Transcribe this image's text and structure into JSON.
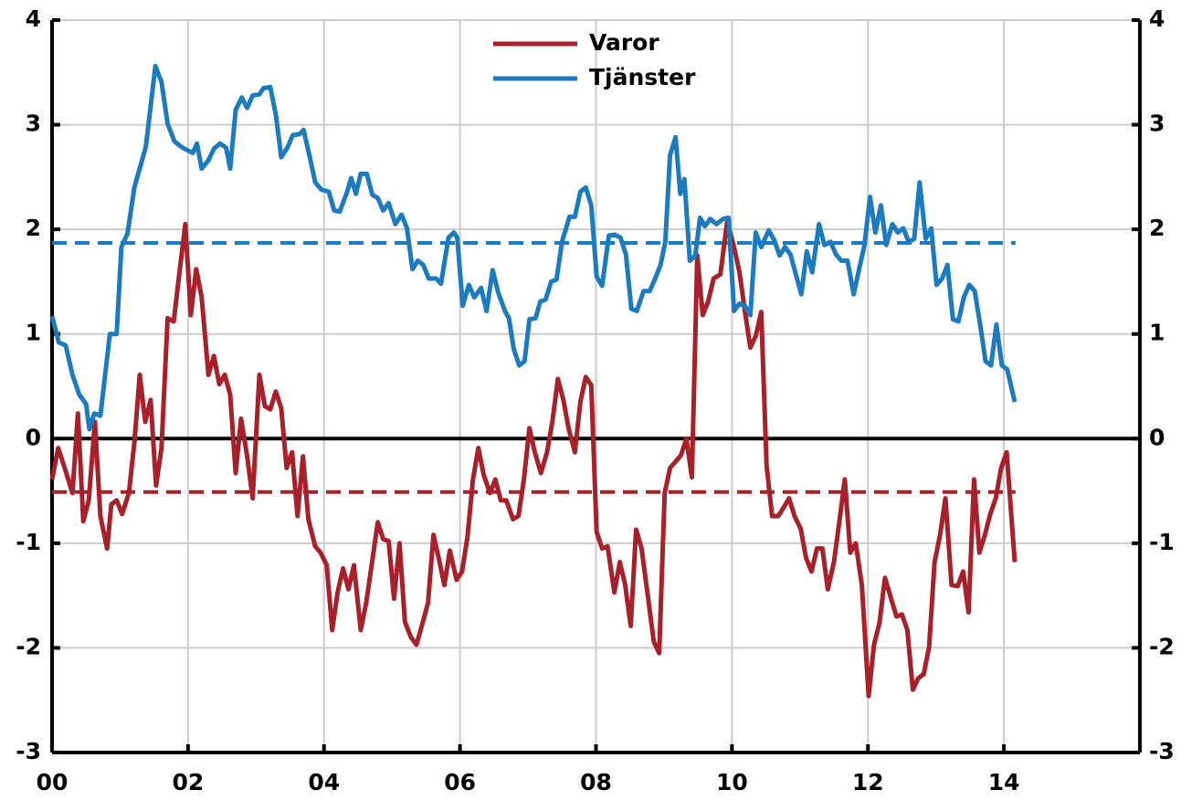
{
  "chart_data": {
    "type": "line",
    "xlim": [
      0,
      16
    ],
    "xticks": [
      {
        "value": 0,
        "label": "00"
      },
      {
        "value": 2,
        "label": "02"
      },
      {
        "value": 4,
        "label": "04"
      },
      {
        "value": 6,
        "label": "06"
      },
      {
        "value": 8,
        "label": "08"
      },
      {
        "value": 10,
        "label": "10"
      },
      {
        "value": 12,
        "label": "12"
      },
      {
        "value": 14,
        "label": "14"
      }
    ],
    "ylim": [
      -3,
      4
    ],
    "yticks": [
      -3,
      -2,
      -1,
      0,
      1,
      2,
      3,
      4
    ],
    "mirror_y_axis": true,
    "grid": true,
    "legend": "top-center",
    "series": [
      {
        "name": "Varor",
        "color": "#a8202a",
        "x": [
          0,
          0.09,
          0.2,
          0.3,
          0.38,
          0.46,
          0.54,
          0.63,
          0.71,
          0.81,
          0.87,
          0.95,
          1.03,
          1.13,
          1.21,
          1.29,
          1.37,
          1.45,
          1.53,
          1.61,
          1.7,
          1.79,
          1.87,
          1.96,
          2.04,
          2.12,
          2.2,
          2.3,
          2.38,
          2.46,
          2.54,
          2.62,
          2.7,
          2.78,
          2.87,
          2.95,
          3.05,
          3.13,
          3.21,
          3.29,
          3.37,
          3.45,
          3.53,
          3.61,
          3.69,
          3.77,
          3.87,
          3.95,
          4.04,
          4.12,
          4.2,
          4.28,
          4.36,
          4.44,
          4.54,
          4.62,
          4.7,
          4.79,
          4.87,
          4.95,
          5.03,
          5.11,
          5.19,
          5.28,
          5.36,
          5.45,
          5.53,
          5.61,
          5.69,
          5.77,
          5.85,
          5.95,
          6.03,
          6.11,
          6.19,
          6.27,
          6.35,
          6.44,
          6.52,
          6.6,
          6.68,
          6.78,
          6.86,
          6.94,
          7.02,
          7.1,
          7.19,
          7.28,
          7.36,
          7.44,
          7.52,
          7.6,
          7.69,
          7.77,
          7.85,
          7.93,
          8.01,
          8.09,
          8.17,
          8.27,
          8.35,
          8.43,
          8.51,
          8.59,
          8.67,
          8.75,
          8.85,
          8.93,
          9.01,
          9.09,
          9.17,
          9.25,
          9.33,
          9.41,
          9.49,
          9.57,
          9.65,
          9.73,
          9.83,
          9.93,
          10.03,
          10.11,
          10.19,
          10.27,
          10.35,
          10.43,
          10.51,
          10.59,
          10.68,
          10.76,
          10.84,
          10.92,
          11.01,
          11.09,
          11.17,
          11.25,
          11.33,
          11.41,
          11.5,
          11.58,
          11.66,
          11.74,
          11.82,
          11.91,
          12.01,
          12.09,
          12.17,
          12.25,
          12.34,
          12.42,
          12.5,
          12.58,
          12.66,
          12.74,
          12.82,
          12.9,
          12.98,
          13.06,
          13.14,
          13.23,
          13.32,
          13.4,
          13.48,
          13.56,
          13.64,
          13.72,
          13.8,
          13.88,
          13.96,
          14.04,
          14.16
        ],
        "values": [
          -0.39,
          -0.09,
          -0.31,
          -0.52,
          0.24,
          -0.79,
          -0.59,
          0.16,
          -0.74,
          -1.05,
          -0.63,
          -0.59,
          -0.72,
          -0.52,
          -0.04,
          0.61,
          0.16,
          0.37,
          -0.45,
          -0.09,
          1.15,
          1.12,
          1.57,
          2.05,
          1.18,
          1.62,
          1.35,
          0.61,
          0.79,
          0.52,
          0.61,
          0.42,
          -0.33,
          0.19,
          -0.17,
          -0.57,
          0.61,
          0.31,
          0.28,
          0.45,
          0.29,
          -0.28,
          -0.13,
          -0.74,
          -0.17,
          -0.77,
          -1.03,
          -1.09,
          -1.21,
          -1.83,
          -1.47,
          -1.24,
          -1.44,
          -1.21,
          -1.83,
          -1.57,
          -1.21,
          -0.8,
          -0.96,
          -0.98,
          -1.53,
          -1.0,
          -1.75,
          -1.9,
          -1.97,
          -1.76,
          -1.57,
          -0.92,
          -1.15,
          -1.4,
          -1.07,
          -1.35,
          -1.27,
          -0.94,
          -0.39,
          -0.09,
          -0.35,
          -0.52,
          -0.39,
          -0.59,
          -0.59,
          -0.77,
          -0.74,
          -0.39,
          0.1,
          -0.13,
          -0.33,
          -0.13,
          0.17,
          0.57,
          0.37,
          0.09,
          -0.13,
          0.35,
          0.59,
          0.51,
          -0.89,
          -1.05,
          -1.03,
          -1.47,
          -1.18,
          -1.4,
          -1.79,
          -0.87,
          -1.05,
          -1.44,
          -1.94,
          -2.05,
          -0.52,
          -0.28,
          -0.22,
          -0.16,
          0.0,
          -0.37,
          1.75,
          1.18,
          1.31,
          1.53,
          1.57,
          2.08,
          1.83,
          1.59,
          1.22,
          0.87,
          0.98,
          1.21,
          -0.26,
          -0.74,
          -0.74,
          -0.66,
          -0.57,
          -0.74,
          -0.86,
          -1.14,
          -1.27,
          -1.05,
          -1.05,
          -1.44,
          -1.18,
          -0.79,
          -0.39,
          -1.09,
          -1.0,
          -1.4,
          -2.46,
          -1.97,
          -1.76,
          -1.33,
          -1.53,
          -1.7,
          -1.68,
          -1.83,
          -2.4,
          -2.29,
          -2.25,
          -1.99,
          -1.18,
          -0.92,
          -0.57,
          -1.4,
          -1.41,
          -1.27,
          -1.66,
          -0.39,
          -1.09,
          -0.92,
          -0.72,
          -0.57,
          -0.28,
          -0.13,
          -1.18
        ]
      },
      {
        "name": "Tjänster",
        "color": "#1c7bbf",
        "x": [
          0,
          0.1,
          0.2,
          0.3,
          0.4,
          0.5,
          0.55,
          0.62,
          0.71,
          0.85,
          0.95,
          1.02,
          1.11,
          1.21,
          1.38,
          1.52,
          1.61,
          1.7,
          1.8,
          1.92,
          2.07,
          2.13,
          2.2,
          2.3,
          2.38,
          2.47,
          2.56,
          2.62,
          2.7,
          2.79,
          2.87,
          2.95,
          3.05,
          3.11,
          3.21,
          3.29,
          3.37,
          3.46,
          3.54,
          3.64,
          3.7,
          3.8,
          3.87,
          3.96,
          4.07,
          4.15,
          4.23,
          4.34,
          4.4,
          4.47,
          4.54,
          4.63,
          4.71,
          4.79,
          4.87,
          4.95,
          5.05,
          5.14,
          5.22,
          5.3,
          5.38,
          5.46,
          5.54,
          5.65,
          5.72,
          5.83,
          5.91,
          5.96,
          6.04,
          6.13,
          6.21,
          6.31,
          6.39,
          6.48,
          6.56,
          6.66,
          6.72,
          6.79,
          6.87,
          6.95,
          7.02,
          7.11,
          7.18,
          7.26,
          7.34,
          7.42,
          7.5,
          7.61,
          7.69,
          7.77,
          7.85,
          7.93,
          8.01,
          8.09,
          8.19,
          8.27,
          8.36,
          8.44,
          8.52,
          8.6,
          8.7,
          8.79,
          8.87,
          8.95,
          9.02,
          9.09,
          9.17,
          9.24,
          9.3,
          9.38,
          9.46,
          9.53,
          9.6,
          9.68,
          9.77,
          9.87,
          9.95,
          10.03,
          10.11,
          10.19,
          10.27,
          10.35,
          10.43,
          10.54,
          10.62,
          10.7,
          10.78,
          10.86,
          10.94,
          11.02,
          11.1,
          11.18,
          11.28,
          11.36,
          11.45,
          11.53,
          11.61,
          11.7,
          11.79,
          11.87,
          11.95,
          12.03,
          12.11,
          12.19,
          12.27,
          12.36,
          12.44,
          12.52,
          12.6,
          12.68,
          12.76,
          12.85,
          12.93,
          13.01,
          13.09,
          13.17,
          13.25,
          13.33,
          13.41,
          13.49,
          13.57,
          13.65,
          13.73,
          13.81,
          13.89,
          13.97,
          14.05,
          14.16
        ],
        "values": [
          1.17,
          0.92,
          0.89,
          0.61,
          0.42,
          0.33,
          0.09,
          0.24,
          0.22,
          1.0,
          1.0,
          1.83,
          1.96,
          2.4,
          2.79,
          3.56,
          3.41,
          3.01,
          2.84,
          2.78,
          2.73,
          2.82,
          2.58,
          2.66,
          2.77,
          2.82,
          2.78,
          2.58,
          3.14,
          3.26,
          3.16,
          3.28,
          3.29,
          3.35,
          3.36,
          3.1,
          2.69,
          2.78,
          2.9,
          2.91,
          2.95,
          2.66,
          2.45,
          2.38,
          2.36,
          2.18,
          2.17,
          2.36,
          2.49,
          2.34,
          2.53,
          2.53,
          2.33,
          2.3,
          2.18,
          2.25,
          2.05,
          2.14,
          2.01,
          1.62,
          1.7,
          1.66,
          1.53,
          1.53,
          1.48,
          1.92,
          1.97,
          1.92,
          1.27,
          1.47,
          1.35,
          1.44,
          1.22,
          1.61,
          1.4,
          1.22,
          1.15,
          0.86,
          0.7,
          0.74,
          1.14,
          1.15,
          1.31,
          1.33,
          1.5,
          1.52,
          1.88,
          2.12,
          2.12,
          2.36,
          2.4,
          2.23,
          1.55,
          1.46,
          1.94,
          1.95,
          1.92,
          1.76,
          1.24,
          1.22,
          1.41,
          1.41,
          1.53,
          1.66,
          1.88,
          2.71,
          2.88,
          2.34,
          2.48,
          1.7,
          1.75,
          2.11,
          2.03,
          2.1,
          2.05,
          2.1,
          2.11,
          1.22,
          1.29,
          1.27,
          1.18,
          1.97,
          1.83,
          1.99,
          1.9,
          1.75,
          1.83,
          1.76,
          1.57,
          1.38,
          1.79,
          1.59,
          2.05,
          1.85,
          1.88,
          1.76,
          1.7,
          1.7,
          1.38,
          1.62,
          1.85,
          2.31,
          1.97,
          2.23,
          1.85,
          2.05,
          1.97,
          2.01,
          1.88,
          1.91,
          2.45,
          1.91,
          2.01,
          1.47,
          1.53,
          1.66,
          1.14,
          1.12,
          1.35,
          1.47,
          1.41,
          1.09,
          0.74,
          0.7,
          1.09,
          0.7,
          0.66,
          0.35
        ]
      }
    ],
    "hlines": [
      {
        "y": 1.87,
        "x": [
          0,
          14.17
        ],
        "color": "#1c7bbf",
        "dashed": true
      },
      {
        "y": -0.51,
        "x": [
          0,
          14.17
        ],
        "color": "#a8202a",
        "dashed": true
      }
    ]
  }
}
